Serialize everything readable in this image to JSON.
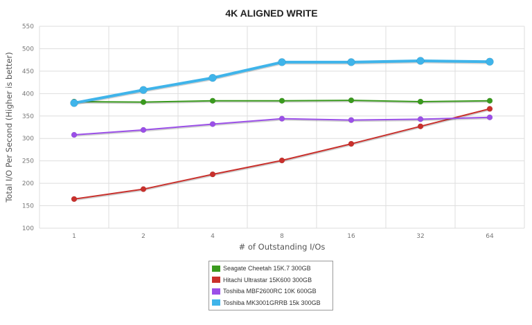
{
  "chart_data": {
    "type": "line",
    "title": "4K ALIGNED WRITE",
    "xlabel": "# of Outstanding I/Os",
    "ylabel": "Total I/O Per Second (Higher is better)",
    "categories": [
      "1",
      "2",
      "4",
      "8",
      "16",
      "32",
      "64"
    ],
    "ylim": [
      100,
      550
    ],
    "yticks": [
      100,
      150,
      200,
      250,
      300,
      350,
      400,
      450,
      500,
      550
    ],
    "grid": true,
    "legend_position": "bottom-center",
    "series": [
      {
        "name": "Seagate Cheetah 15K.7 300GB",
        "color": "#3a9a1e",
        "values": [
          382,
          381,
          384,
          384,
          385,
          382,
          384
        ]
      },
      {
        "name": "Hitachi Ultrastar 15K600 300GB",
        "color": "#c9302c",
        "values": [
          165,
          187,
          220,
          251,
          288,
          327,
          366
        ]
      },
      {
        "name": "Toshiba MBF2600RC 10K 600GB",
        "color": "#9b4fe8",
        "values": [
          308,
          319,
          332,
          344,
          341,
          343,
          347
        ]
      },
      {
        "name": "Toshiba MK3001GRRB 15k 300GB",
        "color": "#3fb4ea",
        "values": [
          379,
          408,
          435,
          470,
          470,
          473,
          471
        ]
      }
    ]
  }
}
